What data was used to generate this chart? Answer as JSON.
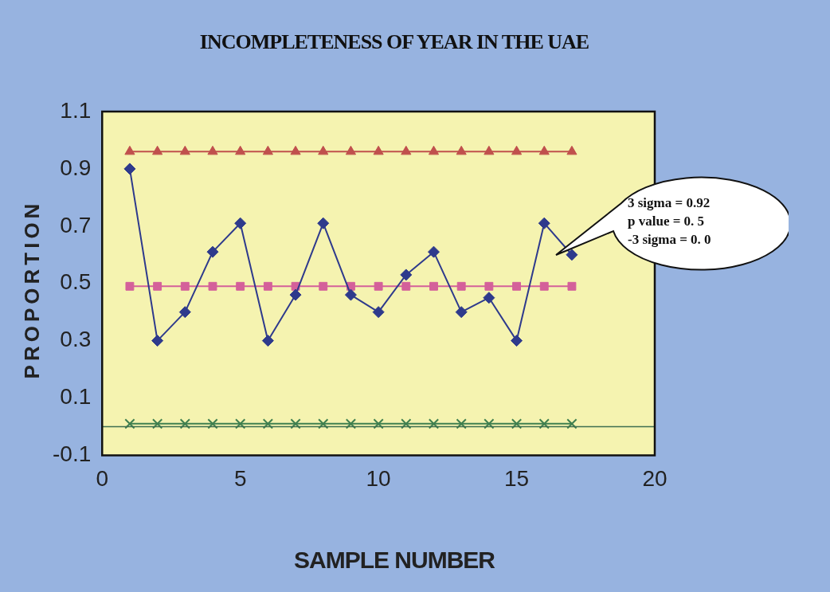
{
  "chart_data": {
    "type": "line",
    "title": "INCOMPLETENESS OF YEAR IN THE UAE",
    "xlabel": "SAMPLE NUMBER",
    "ylabel": "PROPORTION",
    "x": [
      1,
      2,
      3,
      4,
      5,
      6,
      7,
      8,
      9,
      10,
      11,
      12,
      13,
      14,
      15,
      16,
      17
    ],
    "series": [
      {
        "color": "#2e3a8c",
        "marker": "diamond",
        "values": [
          0.9,
          0.3,
          0.4,
          0.61,
          0.71,
          0.3,
          0.46,
          0.71,
          0.46,
          0.4,
          0.53,
          0.61,
          0.4,
          0.45,
          0.3,
          0.71,
          0.6
        ]
      },
      {
        "color": "#c0504d",
        "marker": "triangle",
        "values": [
          0.96,
          0.96,
          0.96,
          0.96,
          0.96,
          0.96,
          0.96,
          0.96,
          0.96,
          0.96,
          0.96,
          0.96,
          0.96,
          0.96,
          0.96,
          0.96,
          0.96
        ]
      },
      {
        "color": "#d4609a",
        "marker": "square",
        "values": [
          0.49,
          0.49,
          0.49,
          0.49,
          0.49,
          0.49,
          0.49,
          0.49,
          0.49,
          0.49,
          0.49,
          0.49,
          0.49,
          0.49,
          0.49,
          0.49,
          0.49
        ]
      },
      {
        "color": "#3f7f4f",
        "marker": "cross",
        "values": [
          0.01,
          0.01,
          0.01,
          0.01,
          0.01,
          0.01,
          0.01,
          0.01,
          0.01,
          0.01,
          0.01,
          0.01,
          0.01,
          0.01,
          0.01,
          0.01,
          0.01
        ]
      }
    ],
    "xlim": [
      0,
      20
    ],
    "xticks": [
      0,
      5,
      10,
      15,
      20
    ],
    "ylim": [
      -0.1,
      1.1
    ],
    "yticks": [
      -0.1,
      0.1,
      0.3,
      0.5,
      0.7,
      0.9,
      1.1
    ],
    "ref_lines": [
      {
        "axis": "y",
        "value": 0,
        "color": "#3f6f4f"
      }
    ],
    "annotations": [
      "3 sigma = 0.92",
      "p value = 0. 5",
      "-3 sigma = 0. 0"
    ],
    "grid": false,
    "legend": false
  }
}
